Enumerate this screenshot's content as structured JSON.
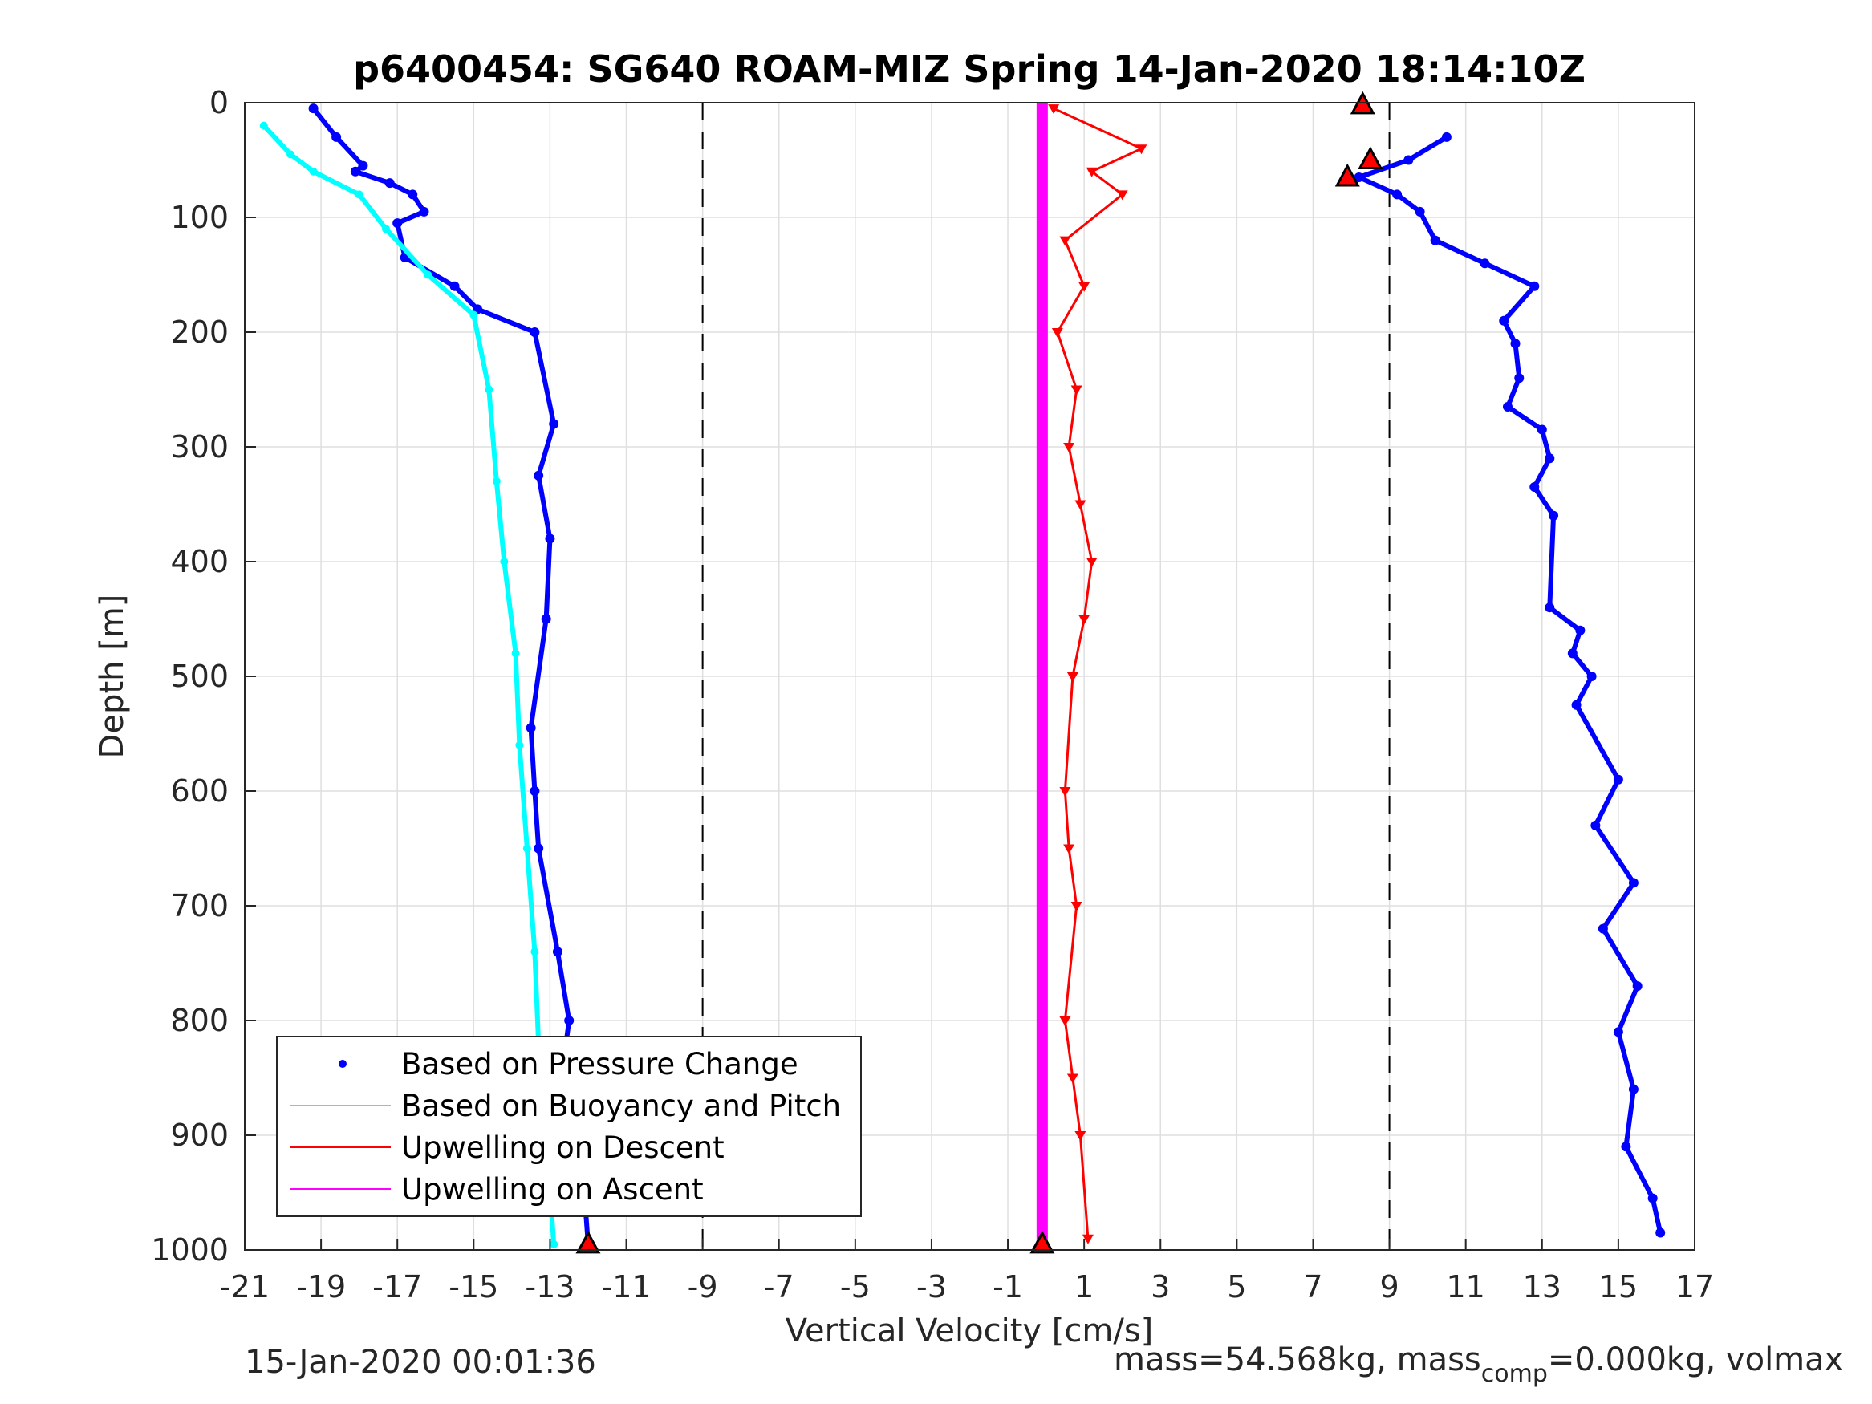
{
  "footer": {
    "date": "15-Jan-2020 00:01:36",
    "mass_prefix": "mass=54.568kg, mass",
    "mass_sub": "comp",
    "mass_suffix": "=0.000kg, volmax"
  },
  "chart_data": {
    "type": "scatter",
    "title": "p6400454: SG640 ROAM-MIZ Spring 14-Jan-2020 18:14:10Z",
    "xlabel": "Vertical Velocity [cm/s]",
    "ylabel": "Depth [m]",
    "xlim": [
      -21,
      17
    ],
    "ylim": [
      0,
      1000
    ],
    "y_reversed": true,
    "xticks": [
      -21,
      -19,
      -17,
      -15,
      -13,
      -11,
      -9,
      -7,
      -5,
      -3,
      -1,
      1,
      3,
      5,
      7,
      9,
      11,
      13,
      15,
      17
    ],
    "yticks": [
      0,
      100,
      200,
      300,
      400,
      500,
      600,
      700,
      800,
      900,
      1000
    ],
    "grid": true,
    "vlines_dashed": [
      -9,
      9
    ],
    "legend_position": "bottom-left",
    "legend": [
      {
        "label": "Based on Pressure Change",
        "color": "#0000ff",
        "style": "dot"
      },
      {
        "label": "Based on Buoyancy and Pitch",
        "color": "#00ffff",
        "style": "line"
      },
      {
        "label": "Upwelling on Descent",
        "color": "#ff0000",
        "style": "line"
      },
      {
        "label": "Upwelling on Ascent",
        "color": "#ff00ff",
        "style": "line"
      }
    ],
    "series": [
      {
        "name": "Based on Pressure Change",
        "role": "descent",
        "color": "#0000ff",
        "x": [
          -19.2,
          -18.6,
          -17.9,
          -18.1,
          -17.2,
          -16.6,
          -16.3,
          -17.0,
          -16.8,
          -15.5,
          -14.9,
          -13.4,
          -12.9,
          -13.3,
          -13.0,
          -13.1,
          -13.5,
          -13.4,
          -13.3,
          -12.8,
          -12.5,
          -12.7,
          -12.3,
          -12.1,
          -12.0
        ],
        "y": [
          5,
          30,
          55,
          60,
          70,
          80,
          95,
          105,
          135,
          160,
          180,
          200,
          280,
          325,
          380,
          450,
          545,
          600,
          650,
          740,
          800,
          850,
          900,
          950,
          995
        ]
      },
      {
        "name": "Based on Pressure Change",
        "role": "ascent",
        "color": "#0000ff",
        "x": [
          10.5,
          9.5,
          8.2,
          9.2,
          9.8,
          10.2,
          11.5,
          12.8,
          12.0,
          12.3,
          12.4,
          12.1,
          13.0,
          13.2,
          12.8,
          13.3,
          13.2,
          14.0,
          13.8,
          14.3,
          13.9,
          15.0,
          14.4,
          15.4,
          14.6,
          15.5,
          15.0,
          15.4,
          15.2,
          15.9,
          16.1
        ],
        "y": [
          30,
          50,
          65,
          80,
          95,
          120,
          140,
          160,
          190,
          210,
          240,
          265,
          285,
          310,
          335,
          360,
          440,
          460,
          480,
          500,
          525,
          590,
          630,
          680,
          720,
          770,
          810,
          860,
          910,
          955,
          985
        ]
      },
      {
        "name": "Based on Buoyancy and Pitch",
        "color": "#00ffff",
        "x": [
          -20.5,
          -19.8,
          -19.2,
          -18.0,
          -17.3,
          -16.2,
          -15.0,
          -14.6,
          -14.4,
          -14.2,
          -13.9,
          -13.8,
          -13.6,
          -13.4,
          -13.3,
          -13.1,
          -12.9
        ],
        "y": [
          20,
          45,
          60,
          80,
          110,
          150,
          185,
          250,
          330,
          400,
          480,
          560,
          650,
          740,
          820,
          900,
          995
        ]
      },
      {
        "name": "Upwelling on Descent",
        "color": "#ff0000",
        "x": [
          0.2,
          2.5,
          1.2,
          2.0,
          0.5,
          1.0,
          0.3,
          0.8,
          0.6,
          0.9,
          1.2,
          1.0,
          0.7,
          0.5,
          0.6,
          0.8,
          0.5,
          0.7,
          0.9,
          1.1
        ],
        "y": [
          5,
          40,
          60,
          80,
          120,
          160,
          200,
          250,
          300,
          350,
          400,
          450,
          500,
          600,
          650,
          700,
          800,
          850,
          900,
          990
        ]
      },
      {
        "name": "Upwelling on Ascent",
        "color": "#ff00ff",
        "x": [
          -0.1,
          -0.1
        ],
        "y": [
          0,
          1000
        ]
      }
    ],
    "markers": [
      {
        "shape": "triangle-up",
        "color": "#ff0000",
        "x": 8.3,
        "y": 2
      },
      {
        "shape": "triangle-up",
        "color": "#ff0000",
        "x": 8.5,
        "y": 50
      },
      {
        "shape": "triangle-up",
        "color": "#ff0000",
        "x": 7.9,
        "y": 65
      },
      {
        "shape": "triangle-up",
        "color": "#ff0000",
        "x": -0.1,
        "y": 995
      },
      {
        "shape": "triangle-up",
        "color": "#ff0000",
        "x": -12.0,
        "y": 995
      }
    ]
  }
}
